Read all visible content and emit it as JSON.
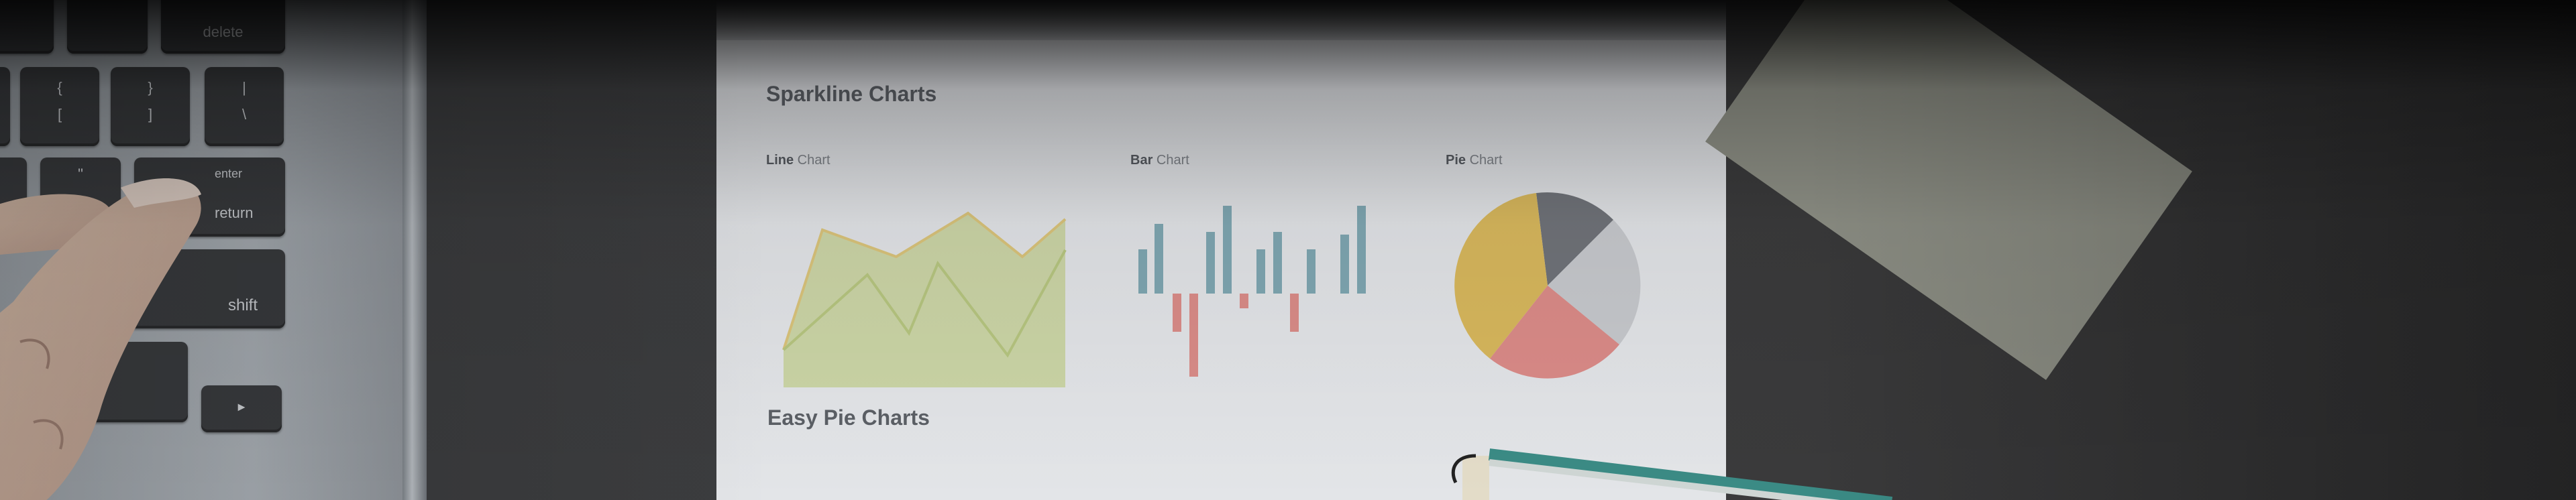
{
  "document": {
    "section1_title": "Sparkline Charts",
    "section2_title": "Easy Pie Charts",
    "charts": [
      {
        "bold": "Line",
        "rest": " Chart"
      },
      {
        "bold": "Bar",
        "rest": " Chart"
      },
      {
        "bold": "Pie",
        "rest": " Chart"
      }
    ]
  },
  "keyboard": {
    "delete": "delete",
    "brace_open": "{",
    "bracket_open": "[",
    "brace_close": "}",
    "bracket_close": "]",
    "pipe": "|",
    "backslash": "\\",
    "quote": "\"",
    "enter": "enter",
    "return": "return",
    "shift": "shift",
    "arrow": "►"
  },
  "colors": {
    "line_fill": "#c9d19a",
    "line_stroke": "#d5c27a",
    "line2_stroke": "#b9c68a",
    "bar_pos": "#7fa5b0",
    "bar_neg": "#d58a86",
    "pie_yellow": "#d8b85a",
    "pie_gray": "#6f7278",
    "pie_light": "#c7c9cd",
    "pie_red": "#d98b88"
  }
}
